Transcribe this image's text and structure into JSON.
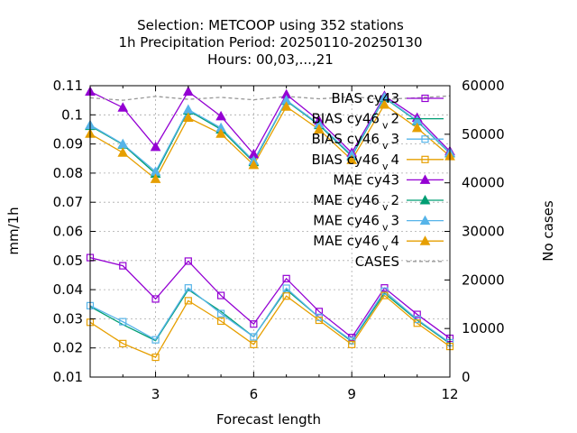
{
  "chart_data": {
    "type": "line",
    "title_lines": [
      "Selection: METCOOP using   352 stations",
      "1h Precipitation   Period: 20250110-20250130",
      "Hours:  00,03,...,21"
    ],
    "xlabel": "Forecast length",
    "ylabel": "mm/1h",
    "y2label": "No cases",
    "xlim": [
      1,
      12
    ],
    "ylim": [
      0.01,
      0.11
    ],
    "y2lim": [
      0,
      60000
    ],
    "x_ticks": [
      3,
      6,
      9,
      12
    ],
    "y_ticks": [
      "0.01",
      "0.02",
      "0.03",
      "0.04",
      "0.05",
      "0.06",
      "0.07",
      "0.08",
      "0.09",
      "0.1",
      "0.11"
    ],
    "y2_ticks": [
      "0",
      "10000",
      "20000",
      "30000",
      "40000",
      "50000",
      "60000"
    ],
    "grid": true,
    "legend_position": "top-right",
    "x": [
      1,
      2,
      3,
      4,
      5,
      6,
      7,
      8,
      9,
      10,
      11,
      12
    ],
    "series": [
      {
        "name": "BIAS cy43",
        "name_sub": "",
        "name_tail": "",
        "axis": "y",
        "color": "#9400d3",
        "marker": "open-square",
        "dash": false,
        "values": [
          0.051,
          0.0482,
          0.0368,
          0.0498,
          0.038,
          0.0282,
          0.0438,
          0.0325,
          0.0236,
          0.0406,
          0.0315,
          0.0233
        ]
      },
      {
        "name": "BIAS cy46",
        "name_sub": "v",
        "name_tail": "2",
        "axis": "y",
        "color": "#009e73",
        "marker": "none",
        "dash": false,
        "values": [
          0.0342,
          0.028,
          0.0225,
          0.04,
          0.0325,
          0.0238,
          0.04,
          0.0305,
          0.0222,
          0.0388,
          0.0295,
          0.0215
        ]
      },
      {
        "name": "BIAS cy46",
        "name_sub": "v",
        "name_tail": "3",
        "axis": "y",
        "color": "#56b4e9",
        "marker": "open-square",
        "dash": false,
        "values": [
          0.0345,
          0.029,
          0.0228,
          0.0406,
          0.0318,
          0.0238,
          0.0405,
          0.0305,
          0.0225,
          0.0395,
          0.0298,
          0.0218
        ]
      },
      {
        "name": "BIAS cy46",
        "name_sub": "v",
        "name_tail": "4",
        "axis": "y",
        "color": "#e69f00",
        "marker": "open-square",
        "dash": false,
        "values": [
          0.0288,
          0.0215,
          0.0168,
          0.0362,
          0.0292,
          0.0212,
          0.0378,
          0.0295,
          0.0212,
          0.038,
          0.0285,
          0.0205
        ]
      },
      {
        "name": "MAE cy43",
        "name_sub": "",
        "name_tail": "",
        "axis": "y",
        "color": "#9400d3",
        "marker": "filled-triangle",
        "dash": false,
        "values": [
          0.108,
          0.1025,
          0.089,
          0.108,
          0.0995,
          0.0865,
          0.107,
          0.098,
          0.087,
          0.1065,
          0.099,
          0.0875
        ]
      },
      {
        "name": "MAE cy46",
        "name_sub": "v",
        "name_tail": "2",
        "axis": "y",
        "color": "#009e73",
        "marker": "filled-triangle",
        "dash": false,
        "values": [
          0.0962,
          0.0898,
          0.0798,
          0.1015,
          0.095,
          0.0838,
          0.1048,
          0.0965,
          0.0858,
          0.1058,
          0.0978,
          0.0868
        ]
      },
      {
        "name": "MAE cy46",
        "name_sub": "v",
        "name_tail": "3",
        "axis": "y",
        "color": "#56b4e9",
        "marker": "filled-triangle",
        "dash": false,
        "values": [
          0.0965,
          0.09,
          0.0805,
          0.1018,
          0.0955,
          0.0842,
          0.105,
          0.0968,
          0.0862,
          0.106,
          0.098,
          0.087
        ]
      },
      {
        "name": "MAE cy46",
        "name_sub": "v",
        "name_tail": "4",
        "axis": "y",
        "color": "#e69f00",
        "marker": "filled-triangle",
        "dash": false,
        "values": [
          0.0935,
          0.087,
          0.078,
          0.099,
          0.0935,
          0.0828,
          0.1028,
          0.095,
          0.0845,
          0.1035,
          0.0955,
          0.0858
        ]
      },
      {
        "name": "CASES",
        "name_sub": "",
        "name_tail": "",
        "axis": "y2",
        "color": "#999999",
        "marker": "none",
        "dash": true,
        "values": [
          57500,
          57000,
          57800,
          57200,
          57600,
          57100,
          57800,
          57300,
          57700,
          57200,
          57500,
          57900
        ]
      }
    ]
  }
}
